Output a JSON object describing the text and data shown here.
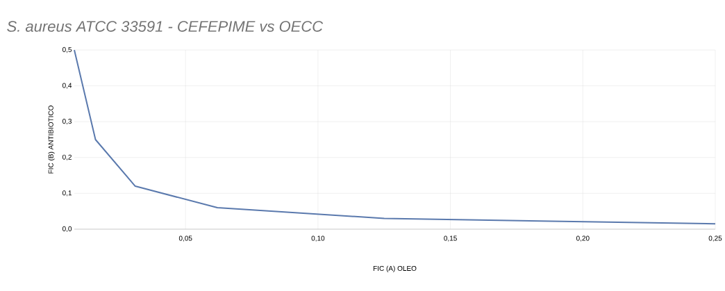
{
  "chart_data": {
    "type": "line",
    "title": "S. aureus ATCC 33591 - CEFEPIME vs OECC",
    "xlabel": "FIC (A) OLEO",
    "ylabel": "FIC (B) ANTIBIOTICO",
    "x": [
      0.008,
      0.016,
      0.031,
      0.062,
      0.125,
      0.25
    ],
    "series": [
      {
        "color": "#5a79ad",
        "values": [
          0.5,
          0.25,
          0.12,
          0.06,
          0.03,
          0.015
        ]
      }
    ],
    "xlim": [
      0.008,
      0.25
    ],
    "xticks": [
      {
        "value": 0.05,
        "label": "0,05"
      },
      {
        "value": 0.1,
        "label": "0,10"
      },
      {
        "value": 0.15,
        "label": "0,15"
      },
      {
        "value": 0.2,
        "label": "0,20"
      },
      {
        "value": 0.25,
        "label": "0,25"
      }
    ],
    "ylim": [
      0,
      0.5
    ],
    "yticks": [
      {
        "value": 0,
        "label": "0,0"
      },
      {
        "value": 0.1,
        "label": "0,1"
      },
      {
        "value": 0.2,
        "label": "0,2"
      },
      {
        "value": 0.3,
        "label": "0,3"
      },
      {
        "value": 0.4,
        "label": "0,4"
      },
      {
        "value": 0.5,
        "label": "0,5"
      }
    ],
    "grid": true,
    "marker": "none",
    "line_style": "solid"
  }
}
